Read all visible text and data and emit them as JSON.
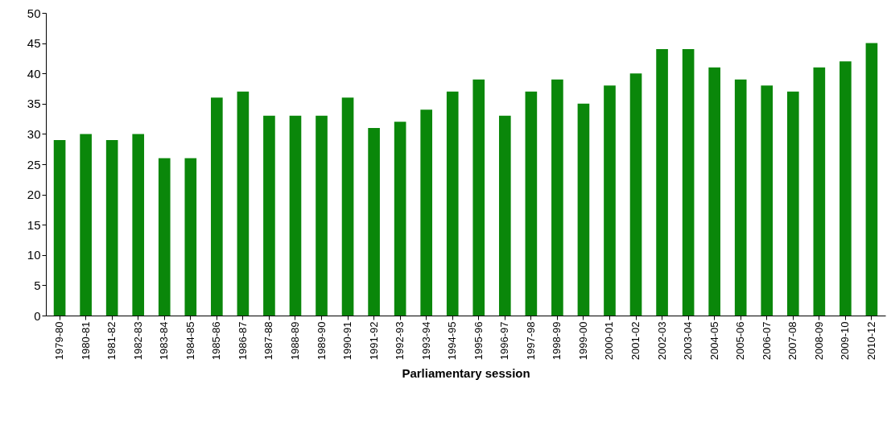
{
  "chart_data": {
    "type": "bar",
    "xlabel": "Parliamentary session",
    "categories": [
      "1979-80",
      "1980-81",
      "1981-82",
      "1982-83",
      "1983-84",
      "1984-85",
      "1985-86",
      "1986-87",
      "1987-88",
      "1988-89",
      "1989-90",
      "1990-91",
      "1991-92",
      "1992-93",
      "1993-94",
      "1994-95",
      "1995-96",
      "1996-97",
      "1997-98",
      "1998-99",
      "1999-00",
      "2000-01",
      "2001-02",
      "2002-03",
      "2003-04",
      "2004-05",
      "2005-06",
      "2006-07",
      "2007-08",
      "2008-09",
      "2009-10",
      "2010-12"
    ],
    "values": [
      29,
      30,
      29,
      30,
      26,
      26,
      36,
      37,
      33,
      33,
      33,
      36,
      31,
      32,
      34,
      37,
      39,
      33,
      37,
      39,
      35,
      38,
      40,
      44,
      44,
      41,
      39,
      38,
      37,
      41,
      42,
      45
    ],
    "color": "#0a870a",
    "ylim": [
      0,
      50
    ],
    "yticks": [
      0,
      5,
      10,
      15,
      20,
      25,
      30,
      35,
      40,
      45,
      50
    ],
    "grid": false
  }
}
